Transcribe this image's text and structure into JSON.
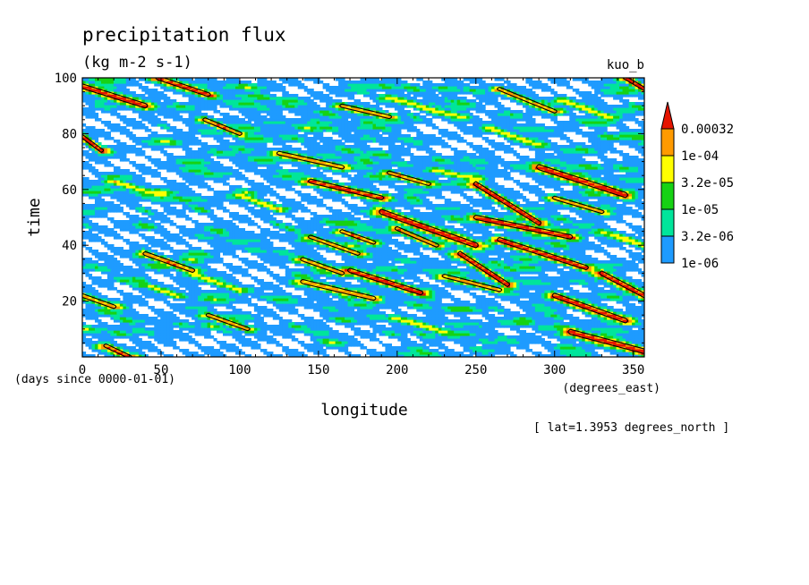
{
  "chart_data": {
    "type": "heatmap",
    "title": "precipitation flux",
    "subtitle": "(kg m-2 s-1)",
    "experiment": "kuo_b",
    "xlabel": "longitude",
    "xunits": "(degrees_east)",
    "ylabel": "time",
    "yunits": "(days since 0000-01-01)",
    "footnote": "[ lat=1.3953 degrees_north ]",
    "xlim": [
      0,
      357
    ],
    "ylim": [
      0,
      100
    ],
    "xticks": [
      0,
      50,
      100,
      150,
      200,
      250,
      300,
      350
    ],
    "yticks": [
      20,
      40,
      60,
      80,
      100
    ],
    "colorbar": {
      "levels": [
        "1e-06",
        "3.2e-06",
        "1e-05",
        "3.2e-05",
        "1e-04",
        "0.00032"
      ],
      "colors": [
        "#1e9bff",
        "#00e59b",
        "#16d214",
        "#ffff00",
        "#ff9a00",
        "#e51400"
      ],
      "extend": "max",
      "contour_color": "#000000"
    },
    "features": [
      {
        "x0": 0,
        "t0": 97,
        "x1": 40,
        "t1": 90,
        "peak": 5,
        "width": 1.6
      },
      {
        "x0": 48,
        "t0": 100,
        "x1": 80,
        "t1": 94,
        "peak": 5,
        "width": 1.4
      },
      {
        "x0": 0,
        "t0": 79,
        "x1": 12,
        "t1": 74,
        "peak": 5,
        "width": 1.4
      },
      {
        "x0": 78,
        "t0": 85,
        "x1": 100,
        "t1": 80,
        "peak": 4,
        "width": 1.3
      },
      {
        "x0": 165,
        "t0": 90,
        "x1": 195,
        "t1": 86,
        "peak": 4,
        "width": 1.2
      },
      {
        "x0": 195,
        "t0": 93,
        "x1": 240,
        "t1": 86,
        "peak": 3,
        "width": 1.2
      },
      {
        "x0": 265,
        "t0": 96,
        "x1": 300,
        "t1": 88,
        "peak": 4,
        "width": 1.2
      },
      {
        "x0": 305,
        "t0": 92,
        "x1": 335,
        "t1": 86,
        "peak": 3,
        "width": 1.2
      },
      {
        "x0": 345,
        "t0": 100,
        "x1": 357,
        "t1": 96,
        "peak": 5,
        "width": 1.3
      },
      {
        "x0": 125,
        "t0": 73,
        "x1": 165,
        "t1": 68,
        "peak": 4,
        "width": 1.3
      },
      {
        "x0": 145,
        "t0": 63,
        "x1": 190,
        "t1": 57,
        "peak": 5,
        "width": 1.4
      },
      {
        "x0": 195,
        "t0": 66,
        "x1": 220,
        "t1": 62,
        "peak": 4,
        "width": 1.2
      },
      {
        "x0": 225,
        "t0": 67,
        "x1": 250,
        "t1": 64,
        "peak": 3,
        "width": 1.1
      },
      {
        "x0": 250,
        "t0": 62,
        "x1": 290,
        "t1": 48,
        "peak": 5,
        "width": 1.6
      },
      {
        "x0": 290,
        "t0": 68,
        "x1": 345,
        "t1": 58,
        "peak": 5,
        "width": 1.8
      },
      {
        "x0": 300,
        "t0": 57,
        "x1": 330,
        "t1": 52,
        "peak": 4,
        "width": 1.2
      },
      {
        "x0": 190,
        "t0": 52,
        "x1": 250,
        "t1": 40,
        "peak": 5,
        "width": 1.8
      },
      {
        "x0": 250,
        "t0": 50,
        "x1": 310,
        "t1": 43,
        "peak": 5,
        "width": 1.5
      },
      {
        "x0": 265,
        "t0": 42,
        "x1": 320,
        "t1": 32,
        "peak": 5,
        "width": 1.5
      },
      {
        "x0": 145,
        "t0": 43,
        "x1": 175,
        "t1": 37,
        "peak": 4,
        "width": 1.2
      },
      {
        "x0": 165,
        "t0": 45,
        "x1": 185,
        "t1": 41,
        "peak": 4,
        "width": 1.2
      },
      {
        "x0": 200,
        "t0": 46,
        "x1": 225,
        "t1": 40,
        "peak": 4,
        "width": 1.3
      },
      {
        "x0": 230,
        "t0": 45,
        "x1": 255,
        "t1": 40,
        "peak": 3,
        "width": 1.2
      },
      {
        "x0": 330,
        "t0": 45,
        "x1": 357,
        "t1": 40,
        "peak": 3,
        "width": 1.3
      },
      {
        "x0": 40,
        "t0": 37,
        "x1": 70,
        "t1": 31,
        "peak": 4,
        "width": 1.4
      },
      {
        "x0": 140,
        "t0": 35,
        "x1": 165,
        "t1": 30,
        "peak": 4,
        "width": 1.3
      },
      {
        "x0": 170,
        "t0": 31,
        "x1": 215,
        "t1": 23,
        "peak": 5,
        "width": 1.5
      },
      {
        "x0": 140,
        "t0": 27,
        "x1": 185,
        "t1": 21,
        "peak": 4,
        "width": 1.4
      },
      {
        "x0": 240,
        "t0": 37,
        "x1": 270,
        "t1": 26,
        "peak": 5,
        "width": 1.6
      },
      {
        "x0": 230,
        "t0": 29,
        "x1": 265,
        "t1": 24,
        "peak": 4,
        "width": 1.2
      },
      {
        "x0": 0,
        "t0": 22,
        "x1": 20,
        "t1": 18,
        "peak": 4,
        "width": 1.3
      },
      {
        "x0": 40,
        "t0": 26,
        "x1": 60,
        "t1": 22,
        "peak": 3,
        "width": 1.1
      },
      {
        "x0": 70,
        "t0": 30,
        "x1": 100,
        "t1": 24,
        "peak": 3,
        "width": 1.2
      },
      {
        "x0": 80,
        "t0": 15,
        "x1": 105,
        "t1": 10,
        "peak": 4,
        "width": 1.2
      },
      {
        "x0": 300,
        "t0": 22,
        "x1": 345,
        "t1": 13,
        "peak": 5,
        "width": 1.6
      },
      {
        "x0": 330,
        "t0": 30,
        "x1": 357,
        "t1": 22,
        "peak": 5,
        "width": 1.6
      },
      {
        "x0": 310,
        "t0": 9,
        "x1": 357,
        "t1": 2,
        "peak": 5,
        "width": 1.7
      },
      {
        "x0": 15,
        "t0": 4,
        "x1": 30,
        "t1": 0,
        "peak": 5,
        "width": 1.3
      },
      {
        "x0": 200,
        "t0": 14,
        "x1": 230,
        "t1": 9,
        "peak": 3,
        "width": 1.2
      },
      {
        "x0": 100,
        "t0": 58,
        "x1": 125,
        "t1": 53,
        "peak": 3,
        "width": 1.2
      },
      {
        "x0": 20,
        "t0": 63,
        "x1": 50,
        "t1": 58,
        "peak": 3,
        "width": 1.2
      },
      {
        "x0": 260,
        "t0": 82,
        "x1": 290,
        "t1": 76,
        "peak": 3,
        "width": 1.2
      }
    ]
  }
}
